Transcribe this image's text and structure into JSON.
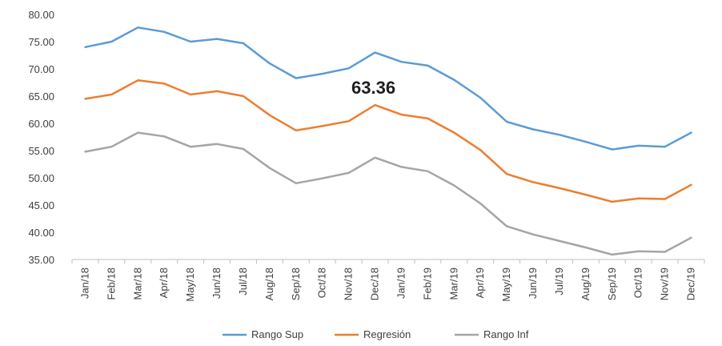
{
  "chart_data": {
    "type": "line",
    "title": "",
    "xlabel": "",
    "ylabel": "",
    "ylim": [
      35,
      80
    ],
    "y_ticks": [
      "80.00",
      "75.00",
      "70.00",
      "65.00",
      "60.00",
      "55.00",
      "50.00",
      "45.00",
      "40.00",
      "35.00"
    ],
    "categories": [
      "Jan/18",
      "Feb/18",
      "Mar/18",
      "Apr/18",
      "May/18",
      "Jun/18",
      "Jul/18",
      "Aug/18",
      "Sep/18",
      "Oct/18",
      "Nov/18",
      "Dec/18",
      "Jan/19",
      "Feb/19",
      "Mar/19",
      "Apr/19",
      "May/19",
      "Jun/19",
      "Jul/19",
      "Aug/19",
      "Sep/19",
      "Oct/19",
      "Nov/19",
      "Dec/19"
    ],
    "series": [
      {
        "name": "Rango Sup",
        "color": "#5B9BD5",
        "values": [
          74.0,
          75.0,
          77.6,
          76.8,
          75.0,
          75.5,
          74.7,
          71.0,
          68.3,
          69.1,
          70.1,
          73.0,
          71.3,
          70.6,
          68.0,
          64.7,
          60.3,
          58.9,
          57.9,
          56.6,
          55.2,
          55.9,
          55.7,
          58.3
        ]
      },
      {
        "name": "Regresión",
        "color": "#ED7D31",
        "values": [
          64.5,
          65.3,
          67.9,
          67.3,
          65.3,
          65.9,
          65.0,
          61.5,
          58.7,
          59.5,
          60.4,
          63.36,
          61.6,
          60.9,
          58.3,
          55.1,
          50.7,
          49.2,
          48.1,
          46.9,
          45.6,
          46.2,
          46.1,
          48.7
        ]
      },
      {
        "name": "Rango Inf",
        "color": "#A5A5A5",
        "values": [
          54.8,
          55.7,
          58.3,
          57.6,
          55.7,
          56.2,
          55.3,
          51.8,
          49.0,
          49.9,
          50.9,
          53.7,
          52.0,
          51.2,
          48.6,
          45.3,
          41.1,
          39.6,
          38.4,
          37.2,
          35.9,
          36.5,
          36.4,
          39.0
        ]
      }
    ],
    "annotations": [
      {
        "text": "63.36",
        "series": "Regresión",
        "category": "Dec/18"
      }
    ],
    "legend": {
      "position": "bottom"
    },
    "grid": false
  }
}
